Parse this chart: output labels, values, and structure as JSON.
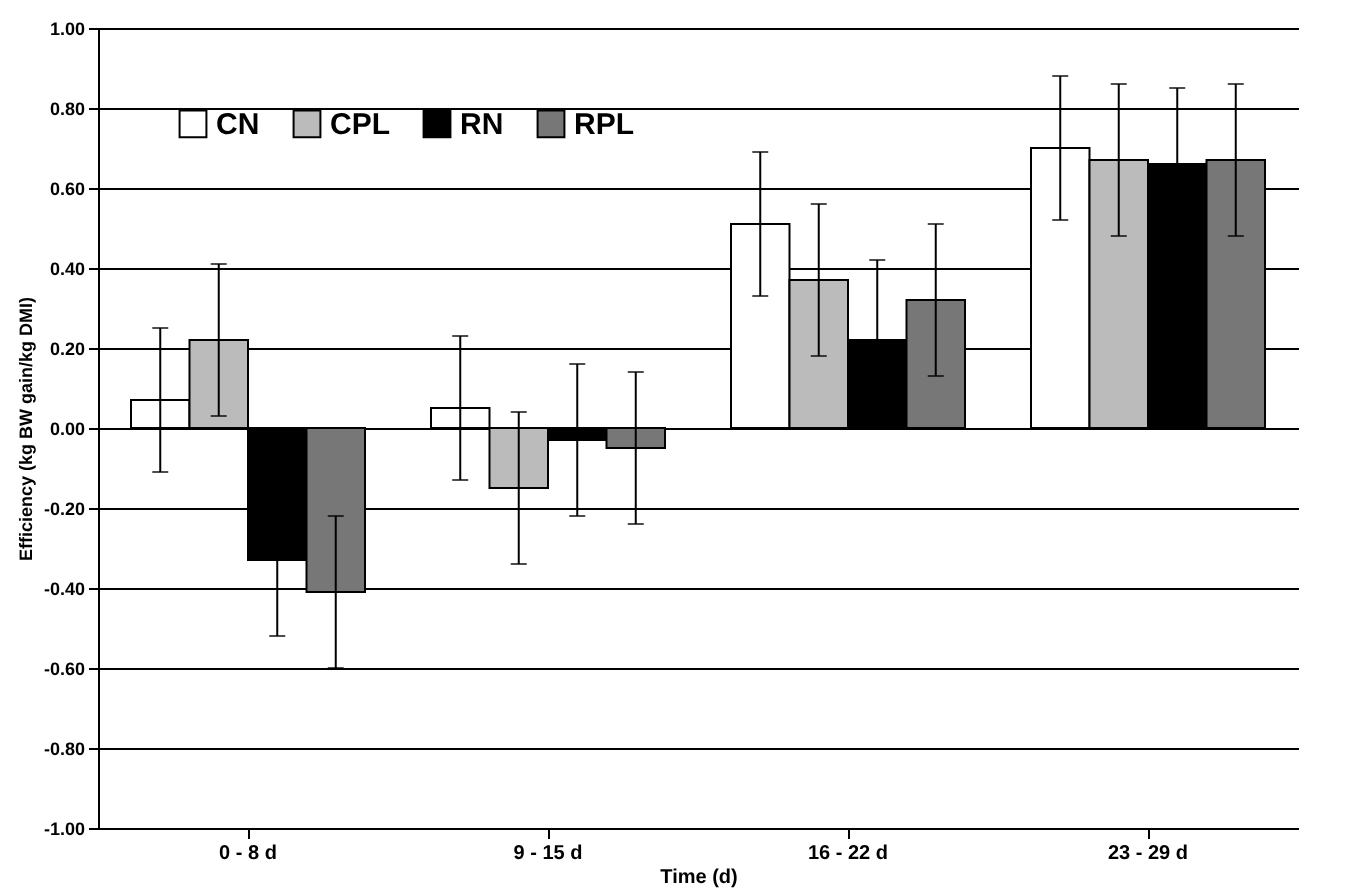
{
  "chart_data": {
    "type": "bar",
    "xlabel": "Time (d)",
    "ylabel": "Efficiency (kg BW gain/kg DMI)",
    "categories": [
      "0 - 8 d",
      "9 - 15 d",
      "16 - 22 d",
      "23 - 29 d"
    ],
    "series": [
      {
        "name": "CN",
        "color": "#ffffff",
        "values": [
          0.07,
          0.05,
          0.51,
          0.7
        ],
        "errors": [
          0.18,
          0.18,
          0.18,
          0.18
        ]
      },
      {
        "name": "CPL",
        "color": "#bbbbbb",
        "values": [
          0.22,
          -0.15,
          0.37,
          0.67
        ],
        "errors": [
          0.19,
          0.19,
          0.19,
          0.19
        ]
      },
      {
        "name": "RN",
        "color": "#000000",
        "values": [
          -0.33,
          -0.03,
          0.22,
          0.66
        ],
        "errors": [
          0.19,
          0.19,
          0.2,
          0.19
        ]
      },
      {
        "name": "RPL",
        "color": "#777777",
        "values": [
          -0.41,
          -0.05,
          0.32,
          0.67
        ],
        "errors": [
          0.19,
          0.19,
          0.19,
          0.19
        ]
      }
    ],
    "ylim": [
      -1,
      1
    ],
    "yticks": [
      {
        "value": -1,
        "label": "-1.00"
      },
      {
        "value": -0.8,
        "label": "-0.80"
      },
      {
        "value": -0.6,
        "label": "-0.60"
      },
      {
        "value": -0.4,
        "label": "-0.40"
      },
      {
        "value": -0.2,
        "label": "-0.20"
      },
      {
        "value": 0,
        "label": "0.00"
      },
      {
        "value": 0.2,
        "label": "0.20"
      },
      {
        "value": 0.4,
        "label": "0.40"
      },
      {
        "value": 0.6,
        "label": "0.60"
      },
      {
        "value": 0.8,
        "label": "0.80"
      },
      {
        "value": 1,
        "label": "1.00"
      }
    ],
    "grid": "y",
    "legend": "top left"
  }
}
